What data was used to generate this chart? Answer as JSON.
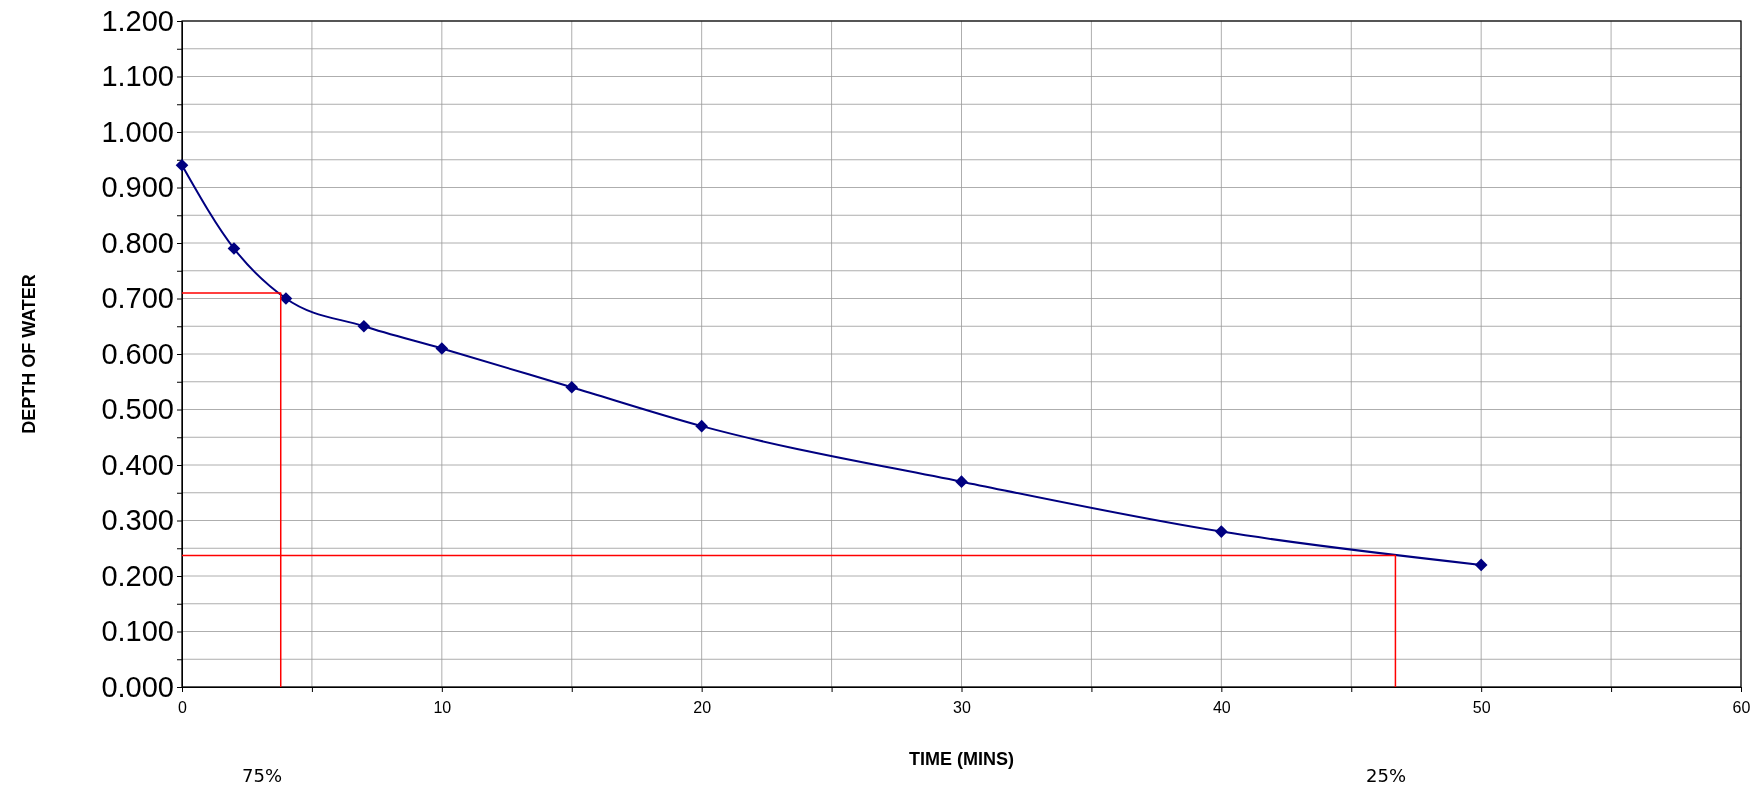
{
  "chart_data": {
    "type": "line",
    "xlabel": "TIME (MINS)",
    "ylabel": "DEPTH OF WATER",
    "xlim": [
      0,
      60
    ],
    "xticks": [
      0,
      {
        "value": 5,
        "label": null
      },
      10,
      {
        "value": 15,
        "label": null
      },
      20,
      {
        "value": 25,
        "label": null
      },
      30,
      {
        "value": 35,
        "label": null
      },
      40,
      {
        "value": 45,
        "label": null
      },
      50,
      {
        "value": 55,
        "label": null
      },
      60
    ],
    "ylim": [
      0,
      1.2
    ],
    "yticks": [
      {
        "value": 0,
        "label": "0.000"
      },
      {
        "value": 0.05,
        "label": null
      },
      {
        "value": 0.1,
        "label": "0.100"
      },
      {
        "value": 0.15,
        "label": null
      },
      {
        "value": 0.2,
        "label": "0.200"
      },
      {
        "value": 0.25,
        "label": null
      },
      {
        "value": 0.3,
        "label": "0.300"
      },
      {
        "value": 0.35,
        "label": null
      },
      {
        "value": 0.4,
        "label": "0.400"
      },
      {
        "value": 0.45,
        "label": null
      },
      {
        "value": 0.5,
        "label": "0.500"
      },
      {
        "value": 0.55,
        "label": null
      },
      {
        "value": 0.6,
        "label": "0.600"
      },
      {
        "value": 0.65,
        "label": null
      },
      {
        "value": 0.7,
        "label": "0.700"
      },
      {
        "value": 0.75,
        "label": null
      },
      {
        "value": 0.8,
        "label": "0.800"
      },
      {
        "value": 0.85,
        "label": null
      },
      {
        "value": 0.9,
        "label": "0.900"
      },
      {
        "value": 0.95,
        "label": null
      },
      {
        "value": 1.0,
        "label": "1.000"
      },
      {
        "value": 1.05,
        "label": null
      },
      {
        "value": 1.1,
        "label": "1.100"
      },
      {
        "value": 1.15,
        "label": null
      },
      {
        "value": 1.2,
        "label": "1.200"
      }
    ],
    "grid": true,
    "series": [
      {
        "color": "#000080",
        "marker": "diamond",
        "x": [
          0,
          2,
          4,
          7,
          10,
          15,
          20,
          30,
          40,
          50
        ],
        "values": [
          0.94,
          0.79,
          0.7,
          0.65,
          0.61,
          0.54,
          0.47,
          0.37,
          0.28,
          0.22
        ]
      },
      {
        "color": "#ff0000",
        "marker": "none",
        "x": [
          0,
          3.8,
          3.8
        ],
        "values": [
          0.71,
          0.71,
          0
        ]
      },
      {
        "color": "#ff0000",
        "marker": "none",
        "x": [
          0,
          46.7,
          46.7
        ],
        "values": [
          0.237,
          0.237,
          0
        ]
      }
    ],
    "annotations": [
      "75%",
      "25%"
    ]
  }
}
